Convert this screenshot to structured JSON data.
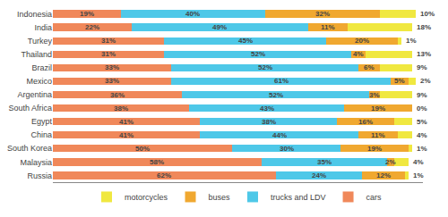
{
  "chart_data": {
    "type": "bar",
    "orientation": "horizontal",
    "stacked": true,
    "data_labels": true,
    "tick_labels": "y",
    "legend": "bottom",
    "grid": false,
    "categories": [
      "Indonesia",
      "India",
      "Turkey",
      "Thailand",
      "Brazil",
      "Mexico",
      "Argentina",
      "South Africa",
      "Egypt",
      "China",
      "South Korea",
      "Malaysia",
      "Russia"
    ],
    "xlim": [
      0,
      103
    ],
    "xticks": [],
    "series": [
      {
        "name": "cars",
        "color": "#f0885a",
        "values": [
          19,
          22,
          31,
          31,
          33,
          33,
          36,
          38,
          41,
          41,
          50,
          58,
          62
        ],
        "value_labels": [
          "19%",
          "22%",
          "31%",
          "31%",
          "33%",
          "33%",
          "36%",
          "38%",
          "41%",
          "41%",
          "50%",
          "58%",
          "62%"
        ]
      },
      {
        "name": "trucks and LDV",
        "color": "#4ec8e8",
        "values": [
          40,
          49,
          45,
          52,
          52,
          61,
          52,
          43,
          38,
          44,
          30,
          35,
          24
        ],
        "value_labels": [
          "40%",
          "49%",
          "45%",
          "52%",
          "52%",
          "61%",
          "52%",
          "43%",
          "38%",
          "44%",
          "30%",
          "35%",
          "24%"
        ]
      },
      {
        "name": "buses",
        "color": "#f0a830",
        "values": [
          32,
          11,
          20,
          4,
          6,
          5,
          3,
          19,
          16,
          11,
          19,
          2,
          12
        ],
        "value_labels": [
          "32%",
          "11%",
          "20%",
          "4%",
          "6%",
          "5%",
          "3%",
          "19%",
          "16%",
          "11%",
          "19%",
          "2%",
          "12%"
        ]
      },
      {
        "name": "motorcycles",
        "color": "#f0e840",
        "values": [
          10,
          18,
          1,
          13,
          9,
          2,
          9,
          0,
          5,
          4,
          1,
          4,
          1
        ],
        "value_labels": [
          "10%",
          "18%",
          "1%",
          "13%",
          "9%",
          "2%",
          "9%",
          "0%",
          "5%",
          "4%",
          "1%",
          "4%",
          "1%"
        ]
      }
    ]
  }
}
